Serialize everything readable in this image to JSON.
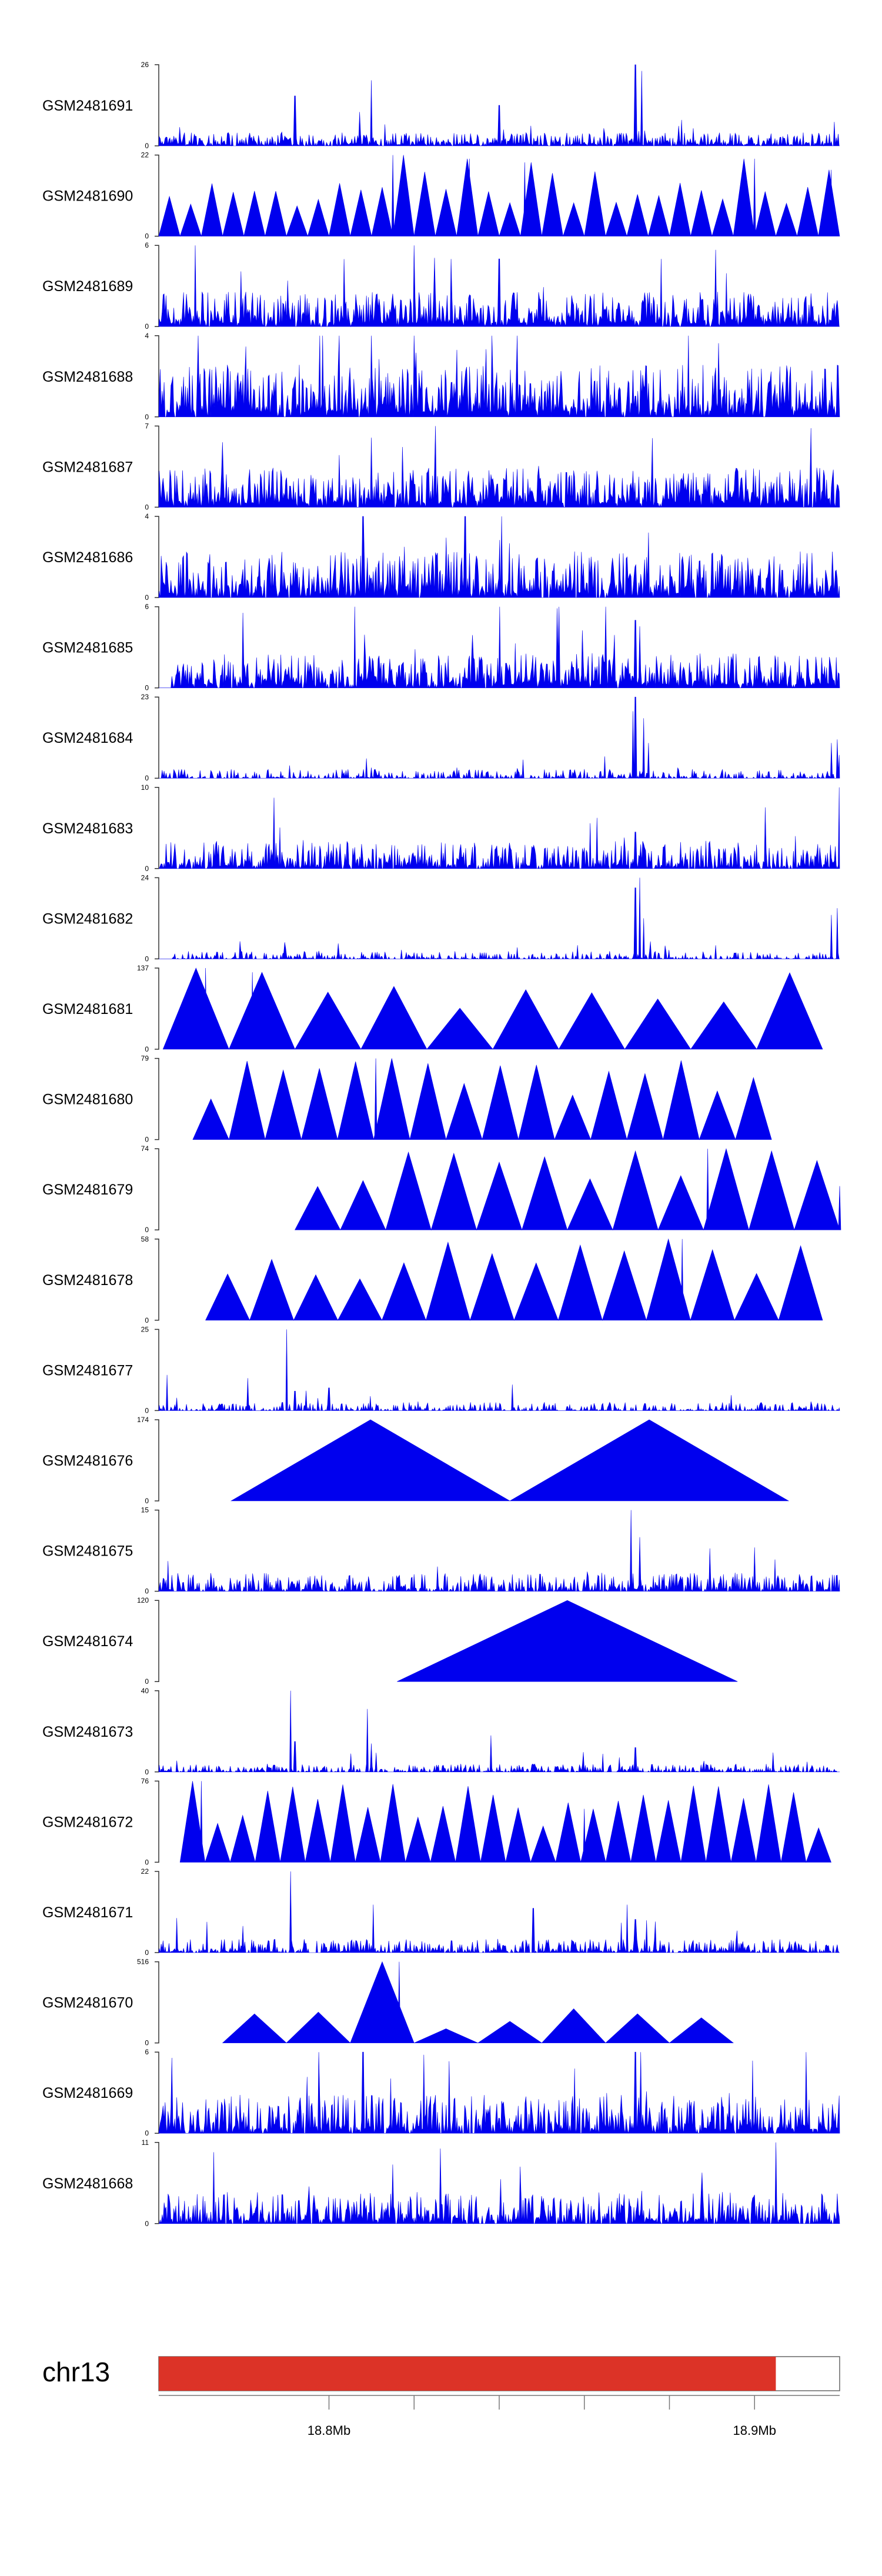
{
  "chart_data": {
    "type": "area",
    "title": "",
    "chromosome": "chr13",
    "colors": {
      "track": "#0000ee",
      "ideogram": "#dc3327"
    },
    "xlim_mb": [
      18.76,
      18.92
    ],
    "ideogram_end_mb": 18.905,
    "x_ticks": [
      18.8,
      18.82,
      18.84,
      18.86,
      18.88,
      18.9
    ],
    "x_tick_labels": [
      {
        "at": 18.8,
        "label": "18.8Mb"
      },
      {
        "at": 18.9,
        "label": "18.9Mb"
      }
    ],
    "tracks": [
      {
        "name": "GSM2481691",
        "ymax": 26,
        "style": "dense",
        "base": 1.5,
        "density": 0.8,
        "gaps": [],
        "peaks": [
          [
            18.765,
            6
          ],
          [
            18.792,
            16
          ],
          [
            18.81,
            21
          ],
          [
            18.84,
            13
          ],
          [
            18.872,
            26
          ],
          [
            18.8735,
            24
          ]
        ]
      },
      {
        "name": "GSM2481690",
        "ymax": 22,
        "style": "tri",
        "n": 32,
        "hv": [
          0.35,
          0.8
        ],
        "ends": [
          18.76,
          18.92
        ],
        "peaks": [
          [
            18.815,
            22
          ],
          [
            18.833,
            21
          ],
          [
            18.846,
            20
          ],
          [
            18.9,
            21
          ],
          [
            18.918,
            18
          ]
        ]
      },
      {
        "name": "GSM2481689",
        "ymax": 6,
        "style": "dense",
        "base": 0.9,
        "density": 0.9,
        "gaps": [],
        "peaks": [
          [
            18.82,
            6
          ],
          [
            18.84,
            5
          ],
          [
            18.878,
            5
          ]
        ]
      },
      {
        "name": "GSM2481688",
        "ymax": 4,
        "style": "dense",
        "base": 0.9,
        "density": 0.9,
        "gaps": [],
        "peaks": [
          [
            18.81,
            4
          ],
          [
            18.82,
            4
          ],
          [
            18.83,
            3.3
          ]
        ]
      },
      {
        "name": "GSM2481687",
        "ymax": 7,
        "style": "dense",
        "base": 1.2,
        "density": 0.9,
        "gaps": [],
        "peaks": [
          [
            18.81,
            6
          ],
          [
            18.825,
            7
          ]
        ]
      },
      {
        "name": "GSM2481686",
        "ymax": 4,
        "style": "dense",
        "base": 0.8,
        "density": 0.85,
        "gaps": [],
        "peaks": [
          [
            18.808,
            4
          ],
          [
            18.832,
            4
          ],
          [
            18.875,
            3.2
          ]
        ]
      },
      {
        "name": "GSM2481685",
        "ymax": 6,
        "style": "dense",
        "base": 0.9,
        "density": 0.9,
        "gaps": [
          [
            18.76,
            18.763
          ]
        ],
        "peaks": [
          [
            18.806,
            6
          ],
          [
            18.865,
            6
          ],
          [
            18.872,
            5
          ]
        ]
      },
      {
        "name": "GSM2481684",
        "ymax": 23,
        "style": "dense",
        "base": 0.9,
        "density": 0.55,
        "gaps": [],
        "peaks": [
          [
            18.81,
            3
          ],
          [
            18.83,
            3
          ],
          [
            18.8715,
            19
          ],
          [
            18.872,
            23
          ],
          [
            18.874,
            17
          ],
          [
            18.875,
            10
          ],
          [
            18.918,
            10
          ],
          [
            18.9195,
            11
          ]
        ]
      },
      {
        "name": "GSM2481683",
        "ymax": 10,
        "style": "dense",
        "base": 1.2,
        "density": 0.75,
        "gaps": [],
        "peaks": [
          [
            18.773,
            3
          ],
          [
            18.794,
            3.5
          ],
          [
            18.801,
            3
          ],
          [
            18.811,
            3
          ],
          [
            18.872,
            4.5
          ],
          [
            18.9095,
            4
          ],
          [
            18.92,
            10
          ]
        ]
      },
      {
        "name": "GSM2481682",
        "ymax": 24,
        "style": "dense",
        "base": 0.8,
        "density": 0.5,
        "gaps": [
          [
            18.76,
            18.763
          ]
        ],
        "peaks": [
          [
            18.872,
            21
          ],
          [
            18.873,
            24
          ],
          [
            18.874,
            12
          ],
          [
            18.918,
            13
          ],
          [
            18.9195,
            15
          ]
        ]
      },
      {
        "name": "GSM2481681",
        "ymax": 137,
        "style": "tri",
        "n": 10,
        "hv": [
          0.4,
          1.0
        ],
        "ends": [
          18.761,
          18.916
        ],
        "peaks": [
          [
            18.771,
            137
          ],
          [
            18.782,
            130
          ]
        ]
      },
      {
        "name": "GSM2481680",
        "ymax": 79,
        "style": "tri",
        "n": 16,
        "hv": [
          0.5,
          1.0
        ],
        "ends": [
          18.768,
          18.904
        ],
        "peaks": [
          [
            18.811,
            79
          ]
        ]
      },
      {
        "name": "GSM2481679",
        "ymax": 74,
        "style": "tri",
        "n": 12,
        "hv": [
          0.5,
          1.0
        ],
        "ends": [
          18.792,
          18.92
        ],
        "peaks": [
          [
            18.872,
            72
          ],
          [
            18.889,
            74
          ],
          [
            18.904,
            72
          ],
          [
            18.92,
            40
          ]
        ]
      },
      {
        "name": "GSM2481678",
        "ymax": 58,
        "style": "tri",
        "n": 14,
        "hv": [
          0.5,
          1.0
        ],
        "ends": [
          18.771,
          18.916
        ],
        "peaks": [
          [
            18.883,
            58
          ]
        ]
      },
      {
        "name": "GSM2481677",
        "ymax": 25,
        "style": "dense",
        "base": 0.9,
        "density": 0.5,
        "gaps": [],
        "peaks": [
          [
            18.762,
            11
          ],
          [
            18.781,
            10
          ],
          [
            18.79,
            25
          ],
          [
            18.792,
            6
          ],
          [
            18.8,
            7
          ],
          [
            18.843,
            8
          ]
        ]
      },
      {
        "name": "GSM2481676",
        "ymax": 174,
        "style": "tri",
        "n": 2,
        "hv": [
          1,
          1
        ],
        "ends": [
          18.777,
          18.908
        ],
        "peaks": []
      },
      {
        "name": "GSM2481675",
        "ymax": 15,
        "style": "dense",
        "base": 1.2,
        "density": 0.65,
        "gaps": [],
        "peaks": [
          [
            18.871,
            15
          ],
          [
            18.873,
            10
          ]
        ]
      },
      {
        "name": "GSM2481674",
        "ymax": 120,
        "style": "tri",
        "n": 1,
        "hv": [
          1,
          1
        ],
        "ends": [
          18.816,
          18.896
        ],
        "peaks": []
      },
      {
        "name": "GSM2481673",
        "ymax": 40,
        "style": "dense",
        "base": 1.4,
        "density": 0.6,
        "gaps": [],
        "peaks": [
          [
            18.791,
            40
          ],
          [
            18.792,
            15
          ],
          [
            18.809,
            31
          ],
          [
            18.81,
            14
          ],
          [
            18.838,
            18
          ],
          [
            18.872,
            12
          ]
        ]
      },
      {
        "name": "GSM2481672",
        "ymax": 76,
        "style": "tri",
        "n": 26,
        "hv": [
          0.35,
          1.0
        ],
        "ends": [
          18.765,
          18.918
        ],
        "peaks": [
          [
            18.77,
            76
          ],
          [
            18.86,
            50
          ]
        ]
      },
      {
        "name": "GSM2481671",
        "ymax": 22,
        "style": "dense",
        "base": 1.3,
        "density": 0.7,
        "gaps": [],
        "peaks": [
          [
            18.791,
            22
          ],
          [
            18.8105,
            13
          ],
          [
            18.848,
            12
          ],
          [
            18.87,
            13
          ],
          [
            18.872,
            9
          ]
        ]
      },
      {
        "name": "GSM2481670",
        "ymax": 516,
        "style": "tri",
        "n": 8,
        "hv": [
          0.15,
          0.45
        ],
        "ends": [
          18.775,
          18.895
        ],
        "peaks": [
          [
            18.8165,
            516
          ]
        ]
      },
      {
        "name": "GSM2481669",
        "ymax": 6,
        "style": "dense",
        "base": 1.0,
        "density": 0.8,
        "gaps": [],
        "peaks": [
          [
            18.808,
            6
          ],
          [
            18.872,
            6
          ]
        ]
      },
      {
        "name": "GSM2481668",
        "ymax": 11,
        "style": "dense",
        "base": 1.5,
        "density": 0.75,
        "gaps": [],
        "peaks": [
          [
            18.815,
            8
          ],
          [
            18.905,
            11
          ]
        ]
      }
    ]
  }
}
